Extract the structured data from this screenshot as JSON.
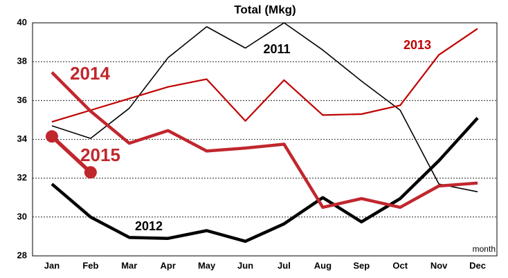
{
  "chart_data": {
    "type": "line",
    "title": "Total (Mkg)",
    "x_label": "month",
    "categories": [
      "Jan",
      "Feb",
      "Mar",
      "Apr",
      "May",
      "Jun",
      "Jul",
      "Aug",
      "Sep",
      "Oct",
      "Nov",
      "Dec"
    ],
    "series": [
      {
        "name": "2011",
        "color": "#000000",
        "values": [
          34.7,
          34.05,
          35.6,
          38.2,
          39.8,
          38.7,
          40.0,
          38.6,
          37.0,
          35.5,
          31.7,
          31.3
        ]
      },
      {
        "name": "2012",
        "color": "#000000",
        "values": [
          31.7,
          30.0,
          28.95,
          28.9,
          29.3,
          28.75,
          29.65,
          31.0,
          29.75,
          30.95,
          32.9,
          35.1
        ]
      },
      {
        "name": "2013",
        "color": "#c00000",
        "values": [
          34.9,
          35.5,
          36.1,
          36.7,
          37.1,
          34.95,
          37.05,
          35.25,
          35.3,
          35.75,
          38.35,
          39.7
        ]
      },
      {
        "name": "2014",
        "color": "#c0272d",
        "values": [
          37.45,
          35.45,
          33.8,
          34.45,
          33.4,
          33.55,
          33.75,
          30.5,
          30.95,
          30.5,
          31.6,
          31.75
        ]
      },
      {
        "name": "2015",
        "color": "#c0272d",
        "values": [
          34.15,
          32.3,
          null,
          null,
          null,
          null,
          null,
          null,
          null,
          null,
          null,
          null
        ]
      }
    ],
    "ylim": [
      28,
      40
    ],
    "yticks": [
      28,
      30,
      32,
      34,
      36,
      38,
      40
    ],
    "grid": true
  }
}
